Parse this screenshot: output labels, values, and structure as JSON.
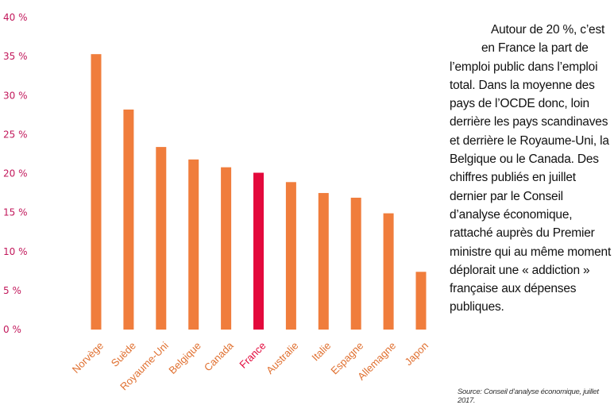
{
  "chart_data": {
    "type": "bar",
    "categories": [
      "Norvège",
      "Suède",
      "Royaume-Uni",
      "Belgique",
      "Canada",
      "France",
      "Australie",
      "Italie",
      "Espagne",
      "Allemagne",
      "Japon"
    ],
    "values": [
      35.3,
      28.2,
      23.4,
      21.8,
      20.8,
      20.1,
      18.9,
      17.5,
      16.9,
      14.9,
      7.4
    ],
    "yticks": [
      "0 %",
      "5 %",
      "10 %",
      "15 %",
      "20 %",
      "25 %",
      "30 %",
      "35 %",
      "40 %"
    ],
    "ylim": [
      0,
      40
    ],
    "highlight": "France",
    "colors": {
      "bar": "#f07d3c",
      "highlight": "#e3093c",
      "tick": "#c2185b",
      "label": "#e07030"
    }
  },
  "commentary": {
    "line1": "Autour de 20 %, c’est",
    "line2": "en France la part de",
    "rest": "l’emploi public dans l’emploi total. Dans la moyenne des pays de l’OCDE donc, loin derrière les pays scandinaves et derrière le Royaume-Uni, la Belgique ou le Canada. Des chiffres publiés en juillet dernier par le Conseil d’analyse économique, rattaché auprès du Premier ministre qui au même moment déplorait une « addiction » française aux dépenses publiques."
  },
  "source": "Source: Conseil d’analyse économique, juillet 2017."
}
